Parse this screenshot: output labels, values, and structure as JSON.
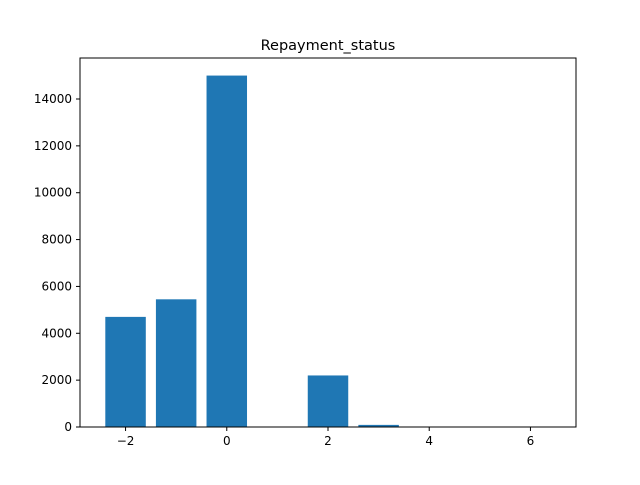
{
  "chart_data": {
    "type": "bar",
    "title": "Repayment_status",
    "xlabel": "",
    "ylabel": "",
    "x": [
      -2,
      -1,
      0,
      2,
      3,
      4,
      5,
      6
    ],
    "values": [
      4700,
      5450,
      15000,
      2200,
      90,
      10,
      5,
      2
    ],
    "bar_width": 0.8,
    "xlim": [
      -2.9,
      6.9
    ],
    "ylim": [
      0,
      15750
    ],
    "xticks": [
      -2,
      0,
      2,
      4,
      6
    ],
    "xtick_labels": [
      "−2",
      "0",
      "2",
      "4",
      "6"
    ],
    "yticks": [
      0,
      2000,
      4000,
      6000,
      8000,
      10000,
      12000,
      14000
    ],
    "ytick_labels": [
      "0",
      "2000",
      "4000",
      "6000",
      "8000",
      "10000",
      "12000",
      "14000"
    ],
    "bar_color": "#1f77b4",
    "grid": false,
    "legend": "none"
  }
}
